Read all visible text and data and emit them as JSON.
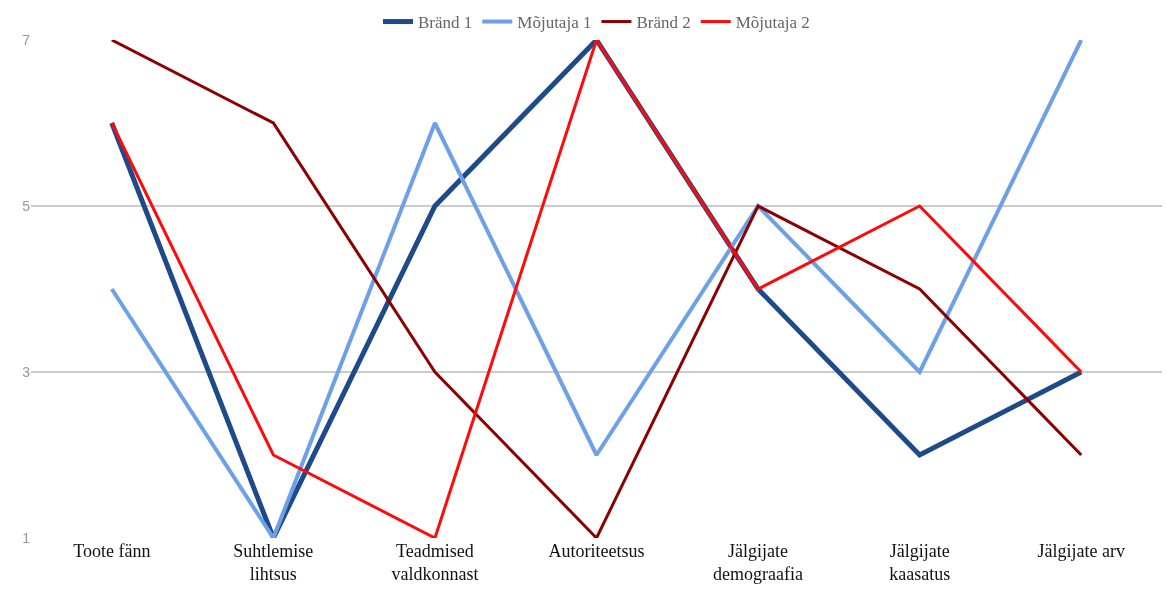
{
  "chart_data": {
    "type": "line",
    "categories": [
      "Toote fänn",
      "Suhtlemise lihtsus",
      "Teadmised valdkonnast",
      "Autoriteetsus",
      "Jälgijate demograafia",
      "Jälgijate kaasatus",
      "Jälgijate arv"
    ],
    "series": [
      {
        "name": "Bränd 1",
        "color": "#1f4a8a",
        "values": [
          6,
          1,
          5,
          7,
          4,
          2,
          3
        ]
      },
      {
        "name": "Mõjutaja 1",
        "color": "#6ea0e8",
        "values": [
          4,
          1,
          6,
          2,
          5,
          3,
          7
        ]
      },
      {
        "name": "Bränd 2",
        "color": "#8b0000",
        "values": [
          7,
          6,
          3,
          1,
          5,
          4,
          2
        ]
      },
      {
        "name": "Mõjutaja 2",
        "color": "#ff0a0a",
        "values": [
          6,
          2,
          1,
          7,
          4,
          5,
          3
        ]
      }
    ],
    "ylim": [
      1,
      7
    ],
    "yticks": [
      1,
      3,
      5,
      7
    ],
    "grid": "y",
    "legend": "top",
    "marker": "none",
    "line_style": "solid"
  }
}
